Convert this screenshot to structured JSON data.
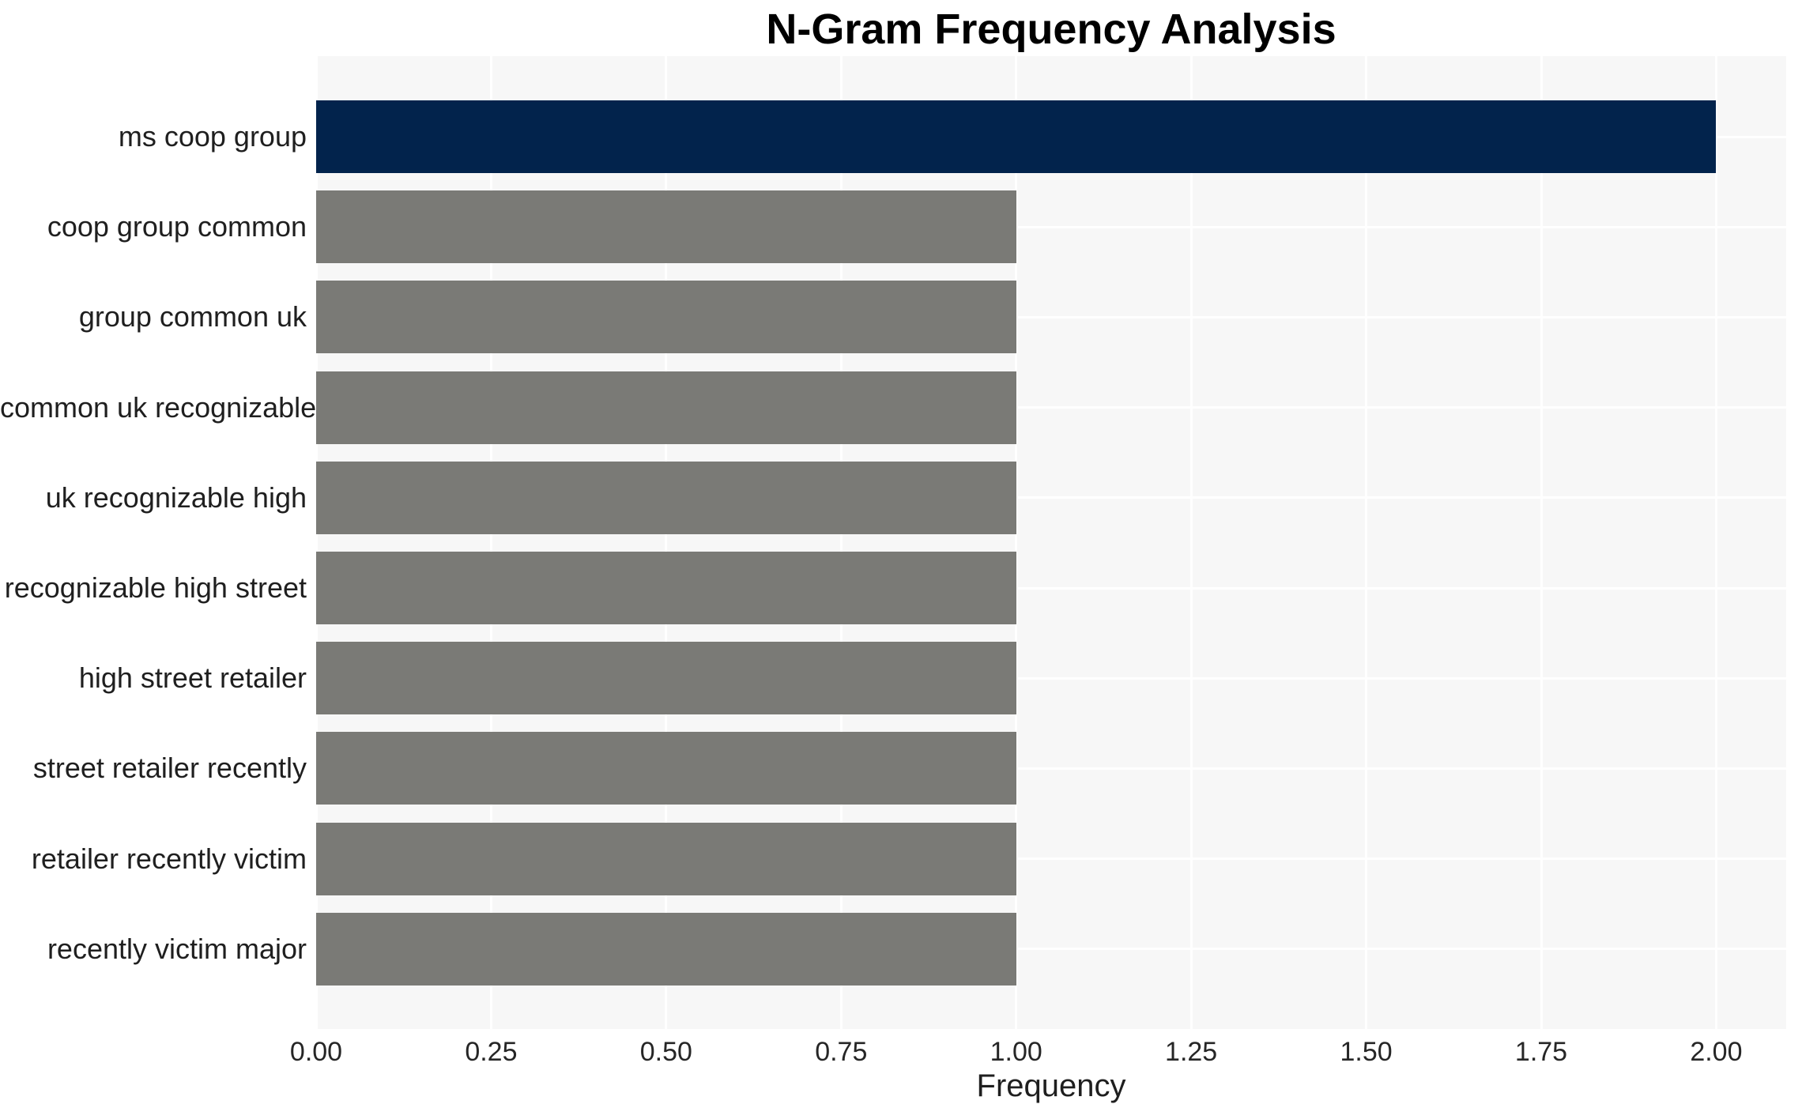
{
  "chart_data": {
    "type": "bar",
    "orientation": "horizontal",
    "title": "N-Gram Frequency Analysis",
    "xlabel": "Frequency",
    "ylabel": "",
    "categories": [
      "ms coop group",
      "coop group common",
      "group common uk",
      "common uk recognizable",
      "uk recognizable high",
      "recognizable high street",
      "high street retailer",
      "street retailer recently",
      "retailer recently victim",
      "recently victim major"
    ],
    "values": [
      2,
      1,
      1,
      1,
      1,
      1,
      1,
      1,
      1,
      1
    ],
    "xlim": [
      0,
      2.1
    ],
    "xticks": [
      0,
      0.25,
      0.5,
      0.75,
      1.0,
      1.25,
      1.5,
      1.75,
      2.0
    ],
    "xtick_labels": [
      "0.00",
      "0.25",
      "0.50",
      "0.75",
      "1.00",
      "1.25",
      "1.50",
      "1.75",
      "2.00"
    ],
    "grid": true,
    "legend": false
  },
  "colors": {
    "highlight_bar": "#02234c",
    "default_bar": "#7a7a76",
    "plot_background": "#f7f7f7",
    "gridline": "#ffffff",
    "title_text": "#000000",
    "label_text": "#1f1f1f",
    "tick_text": "#262626"
  }
}
